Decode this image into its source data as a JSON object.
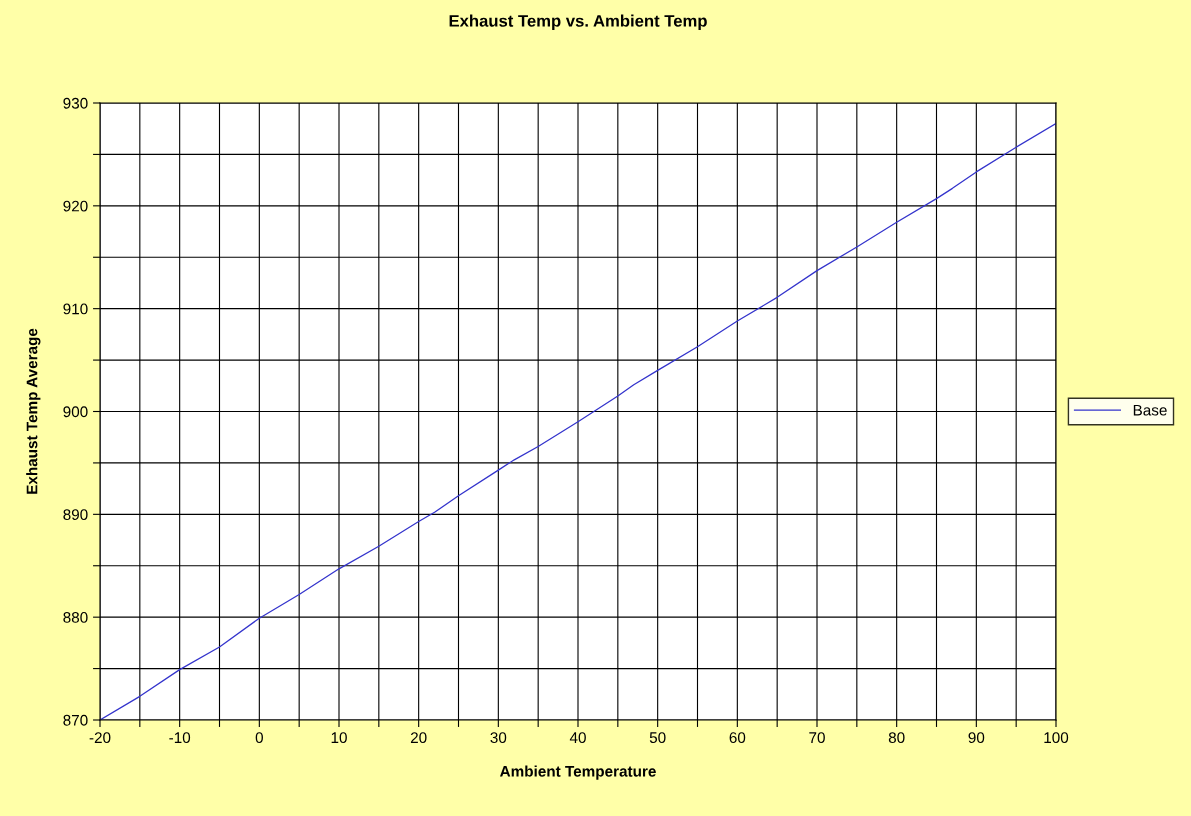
{
  "chart_data": {
    "type": "line",
    "title": "Exhaust Temp vs. Ambient Temp",
    "xlabel": "Ambient Temperature",
    "ylabel": "Exhaust Temp Average",
    "x": [
      -20,
      -15,
      -10,
      -5,
      0,
      5,
      10,
      15,
      20,
      22,
      25,
      30,
      32,
      35,
      40,
      45,
      47,
      50,
      55,
      60,
      65,
      70,
      75,
      80,
      85,
      87,
      90,
      95,
      100
    ],
    "series": [
      {
        "name": "Base",
        "color": "#3333cc",
        "values": [
          870,
          872.3,
          874.9,
          877.1,
          879.9,
          882.2,
          884.7,
          886.9,
          889.3,
          890.2,
          891.8,
          894.3,
          895.3,
          896.6,
          899.0,
          901.5,
          902.6,
          904.0,
          906.3,
          908.8,
          911.1,
          913.7,
          916.0,
          918.4,
          920.7,
          921.7,
          923.3,
          925.7,
          928.0
        ]
      }
    ],
    "xlim": [
      -20,
      100
    ],
    "ylim": [
      870,
      930
    ],
    "xticks": [
      -20,
      {
        "value": -15,
        "label": null
      },
      -10,
      {
        "value": -5,
        "label": null
      },
      0,
      {
        "value": 5,
        "label": null
      },
      10,
      {
        "value": 15,
        "label": null
      },
      20,
      {
        "value": 25,
        "label": null
      },
      30,
      {
        "value": 35,
        "label": null
      },
      40,
      {
        "value": 45,
        "label": null
      },
      50,
      {
        "value": 55,
        "label": null
      },
      60,
      {
        "value": 65,
        "label": null
      },
      70,
      {
        "value": 75,
        "label": null
      },
      80,
      {
        "value": 85,
        "label": null
      },
      90,
      {
        "value": 95,
        "label": null
      },
      100
    ],
    "yticks": [
      870,
      {
        "value": 875,
        "label": null
      },
      880,
      {
        "value": 885,
        "label": null
      },
      890,
      {
        "value": 895,
        "label": null
      },
      900,
      {
        "value": 905,
        "label": null
      },
      910,
      {
        "value": 915,
        "label": null
      },
      920,
      {
        "value": 925,
        "label": null
      },
      930
    ],
    "grid": true,
    "legend": "right",
    "marker": "none",
    "line_style": "solid"
  }
}
